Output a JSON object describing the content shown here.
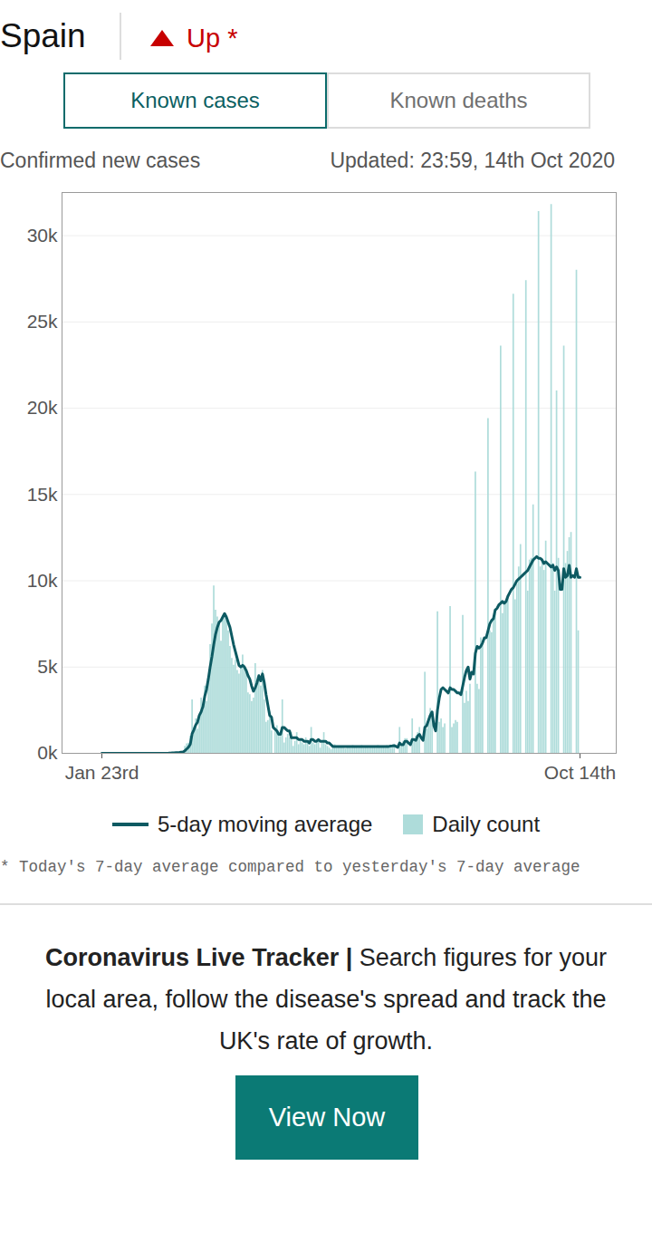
{
  "chart_data": {
    "type": "bar",
    "title": "Spain",
    "subtitle": "Confirmed new cases",
    "note": "Updated: 23:59, 14th Oct 2020",
    "footnote": "* Today's 7-day average compared to yesterday's 7-day average",
    "categories": [
      "Jan 23rd",
      null,
      null,
      null,
      null,
      null,
      null,
      null,
      null,
      null,
      null,
      null,
      null,
      null,
      null,
      null,
      null,
      null,
      null,
      null,
      null,
      null,
      null,
      null,
      null,
      null,
      null,
      null,
      null,
      null,
      null,
      null,
      null,
      null,
      null,
      null,
      null,
      null,
      null,
      null,
      null,
      null,
      null,
      null,
      null,
      null,
      null,
      null,
      null,
      null,
      null,
      null,
      null,
      null,
      null,
      null,
      null,
      null,
      null,
      null,
      null,
      null,
      null,
      null,
      null,
      null,
      null,
      null,
      null,
      null,
      null,
      null,
      null,
      null,
      null,
      null,
      null,
      null,
      null,
      null,
      null,
      null,
      null,
      null,
      null,
      null,
      null,
      null,
      null,
      null,
      null,
      null,
      null,
      null,
      null,
      null,
      null,
      null,
      null,
      null,
      null,
      null,
      null,
      null,
      null,
      null,
      null,
      null,
      null,
      null,
      null,
      null,
      null,
      null,
      null,
      null,
      null,
      null,
      null,
      null,
      null,
      null,
      null,
      null,
      null,
      null,
      null,
      null,
      null,
      null,
      null,
      null,
      null,
      null,
      null,
      null,
      null,
      null,
      null,
      null,
      null,
      null,
      null,
      null,
      null,
      null,
      null,
      null,
      null,
      null,
      null,
      null,
      null,
      null,
      null,
      null,
      null,
      null,
      null,
      null,
      null,
      null,
      null,
      null,
      null,
      null,
      null,
      null,
      null,
      null,
      null,
      null,
      null,
      null,
      null,
      null,
      null,
      null,
      null,
      null,
      null,
      null,
      null,
      null,
      null,
      null,
      null,
      null,
      null,
      null,
      null,
      null,
      null,
      null,
      null,
      null,
      null,
      null,
      null,
      null,
      null,
      null,
      null,
      null,
      null,
      null,
      null,
      null,
      null,
      null,
      null,
      null,
      null,
      null,
      null,
      null,
      null,
      null,
      null,
      null,
      null,
      null,
      null,
      null,
      null,
      null,
      null,
      null,
      null,
      null,
      null,
      null,
      null,
      null,
      null,
      null,
      null,
      null,
      null,
      null,
      null,
      null,
      null,
      null,
      null,
      null,
      null,
      null,
      null,
      null,
      null,
      null,
      null,
      null,
      null,
      null,
      null,
      null,
      null,
      null,
      null,
      null,
      null,
      null,
      null,
      "Oct 14th"
    ],
    "series": [
      {
        "name": "5-day moving average",
        "type": "line",
        "color": "#0d5a62",
        "values": [
          0,
          0,
          0,
          0,
          0,
          0,
          0,
          0,
          0,
          0,
          0,
          0,
          0,
          0,
          0,
          0,
          0,
          0,
          0,
          0,
          0,
          0,
          0,
          0,
          0,
          0,
          0,
          0,
          0,
          0,
          0,
          0,
          0,
          1,
          1,
          2,
          6,
          8,
          14,
          23,
          28,
          36,
          42,
          52,
          66,
          81,
          150,
          249,
          353,
          530,
          1130,
          1360,
          1640,
          1800,
          2200,
          2400,
          2700,
          3300,
          3700,
          4300,
          5000,
          5600,
          6300,
          6900,
          7300,
          7600,
          7700,
          7900,
          8100,
          7900,
          7600,
          7300,
          6800,
          6300,
          5900,
          5500,
          5100,
          5000,
          5100,
          5000,
          4800,
          4500,
          4300,
          3900,
          3600,
          3800,
          4100,
          4500,
          4200,
          4600,
          4100,
          3400,
          2800,
          2200,
          2100,
          1500,
          1400,
          1300,
          1100,
          1100,
          1500,
          1500,
          1400,
          1300,
          1300,
          900,
          900,
          900,
          900,
          800,
          800,
          800,
          700,
          700,
          700,
          600,
          800,
          800,
          700,
          700,
          800,
          700,
          700,
          700,
          700,
          600,
          600,
          500,
          400,
          400,
          400,
          400,
          400,
          400,
          400,
          400,
          400,
          400,
          400,
          400,
          400,
          400,
          400,
          400,
          400,
          400,
          400,
          400,
          400,
          400,
          400,
          400,
          400,
          400,
          400,
          400,
          400,
          400,
          400,
          400,
          420,
          430,
          450,
          400,
          350,
          600,
          500,
          500,
          700,
          700,
          600,
          500,
          800,
          800,
          750,
          1000,
          1100,
          900,
          750,
          1500,
          1600,
          1900,
          2200,
          2400,
          1600,
          1300,
          2500,
          3200,
          3700,
          3800,
          3700,
          3600,
          3500,
          3800,
          3700,
          3700,
          3600,
          3500,
          3500,
          3400,
          3900,
          4400,
          4800,
          5000,
          4300,
          4700,
          4600,
          5800,
          6200,
          6100,
          6200,
          6400,
          6700,
          6700,
          7100,
          7500,
          7700,
          7800,
          8300,
          8400,
          8600,
          8700,
          8800,
          8700,
          8800,
          9100,
          9300,
          9500,
          9600,
          9800,
          10000,
          10100,
          10200,
          10300,
          10400,
          10500,
          10600,
          10800,
          11000,
          11200,
          11300,
          11400,
          11300,
          11300,
          11200,
          11000,
          11100,
          11000,
          10900,
          10800,
          10900,
          10600,
          10800,
          10600,
          9500,
          9500,
          10700,
          10200,
          10300,
          10900,
          10200,
          10300,
          10200,
          10700,
          10200,
          10200
        ]
      },
      {
        "name": "Daily count",
        "type": "bar",
        "color": "#aedcda",
        "values": [
          0,
          0,
          0,
          0,
          0,
          0,
          0,
          0,
          0,
          1,
          0,
          0,
          0,
          0,
          0,
          0,
          0,
          1,
          0,
          0,
          0,
          0,
          0,
          0,
          0,
          0,
          0,
          0,
          0,
          0,
          0,
          0,
          0,
          4,
          3,
          4,
          19,
          12,
          34,
          45,
          30,
          57,
          54,
          76,
          115,
          103,
          402,
          548,
          597,
          1000,
          3100,
          1500,
          2000,
          1400,
          2100,
          3200,
          2500,
          3900,
          3000,
          4200,
          6300,
          7500,
          9700,
          8300,
          7900,
          7500,
          6500,
          7800,
          8000,
          7700,
          7100,
          6200,
          5500,
          5100,
          5400,
          4800,
          4600,
          5000,
          5700,
          5100,
          4800,
          3500,
          3400,
          3000,
          3200,
          5200,
          4200,
          4500,
          3900,
          4800,
          3100,
          1800,
          1900,
          2400,
          1300,
          0,
          1300,
          1600,
          1100,
          1000,
          3100,
          600,
          900,
          1100,
          900,
          1200,
          400,
          700,
          1200,
          500,
          800,
          600,
          500,
          900,
          700,
          400,
          1500,
          600,
          500,
          700,
          800,
          300,
          600,
          1200,
          500,
          400,
          300,
          200,
          300,
          500,
          300,
          400,
          350,
          400,
          300,
          250,
          400,
          350,
          300,
          450,
          400,
          350,
          300,
          400,
          450,
          300,
          350,
          400,
          300,
          400,
          350,
          400,
          300,
          450,
          400,
          350,
          400,
          300,
          450,
          400,
          400,
          450,
          500,
          0,
          0,
          1500,
          500,
          700,
          850,
          850,
          0,
          0,
          2000,
          800,
          1000,
          1200,
          1500,
          0,
          0,
          4700,
          1400,
          1800,
          2600,
          2200,
          0,
          0,
          8200,
          1800,
          2000,
          1500,
          1700,
          0,
          0,
          8500,
          1500,
          1700,
          1900,
          1800,
          0,
          0,
          8000,
          2900,
          3600,
          3000,
          4000,
          0,
          0,
          16300,
          4000,
          3700,
          6700,
          6500,
          0,
          0,
          19400,
          7100,
          7000,
          7900,
          8100,
          0,
          0,
          23600,
          8100,
          8800,
          8900,
          9000,
          0,
          0,
          26600,
          8900,
          9800,
          10800,
          12100,
          0,
          0,
          27400,
          9400,
          11200,
          11300,
          14400,
          0,
          0,
          31400,
          10800,
          11300,
          10600,
          12300,
          0,
          0,
          31800,
          11000,
          9400,
          21000,
          11300,
          0,
          0,
          23600,
          11000,
          11700,
          12500,
          12800,
          0,
          0,
          28000,
          7100,
          0
        ]
      }
    ],
    "ylim": [
      0,
      32500
    ],
    "yticks": [
      {
        "value": 0,
        "label": "0k"
      },
      {
        "value": 5000,
        "label": "5k"
      },
      {
        "value": 10000,
        "label": "10k"
      },
      {
        "value": 15000,
        "label": "15k"
      },
      {
        "value": 20000,
        "label": "20k"
      },
      {
        "value": 25000,
        "label": "25k"
      },
      {
        "value": 30000,
        "label": "30k"
      }
    ],
    "grid": true,
    "legend": "bottom"
  },
  "page": {
    "trend": "Up *",
    "tabs": [
      "Known cases",
      "Known deaths"
    ],
    "selected_tab": "Known cases",
    "promo": {
      "heading": "Coronavirus Live Tracker |",
      "text": "Search figures for your local area, follow the disease's spread and track the UK's rate of growth.",
      "button": "View Now"
    }
  }
}
